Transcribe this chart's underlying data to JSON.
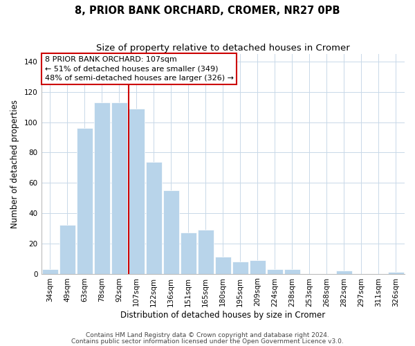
{
  "title": "8, PRIOR BANK ORCHARD, CROMER, NR27 0PB",
  "subtitle": "Size of property relative to detached houses in Cromer",
  "xlabel": "Distribution of detached houses by size in Cromer",
  "ylabel": "Number of detached properties",
  "categories": [
    "34sqm",
    "49sqm",
    "63sqm",
    "78sqm",
    "92sqm",
    "107sqm",
    "122sqm",
    "136sqm",
    "151sqm",
    "165sqm",
    "180sqm",
    "195sqm",
    "209sqm",
    "224sqm",
    "238sqm",
    "253sqm",
    "268sqm",
    "282sqm",
    "297sqm",
    "311sqm",
    "326sqm"
  ],
  "values": [
    3,
    32,
    96,
    113,
    113,
    109,
    74,
    55,
    27,
    29,
    11,
    8,
    9,
    3,
    3,
    0,
    0,
    2,
    0,
    0,
    1
  ],
  "bar_color": "#b8d4ea",
  "vline_color": "#cc0000",
  "vline_index": 5,
  "ylim": [
    0,
    145
  ],
  "yticks": [
    0,
    20,
    40,
    60,
    80,
    100,
    120,
    140
  ],
  "annotation_title": "8 PRIOR BANK ORCHARD: 107sqm",
  "annotation_line1": "← 51% of detached houses are smaller (349)",
  "annotation_line2": "48% of semi-detached houses are larger (326) →",
  "annotation_box_color": "#ffffff",
  "annotation_box_edge": "#cc0000",
  "footer1": "Contains HM Land Registry data © Crown copyright and database right 2024.",
  "footer2": "Contains public sector information licensed under the Open Government Licence v3.0.",
  "background_color": "#ffffff",
  "grid_color": "#c8d8e8",
  "title_fontsize": 10.5,
  "subtitle_fontsize": 9.5,
  "axis_label_fontsize": 8.5,
  "tick_fontsize": 7.5,
  "annotation_fontsize": 8,
  "footer_fontsize": 6.5
}
